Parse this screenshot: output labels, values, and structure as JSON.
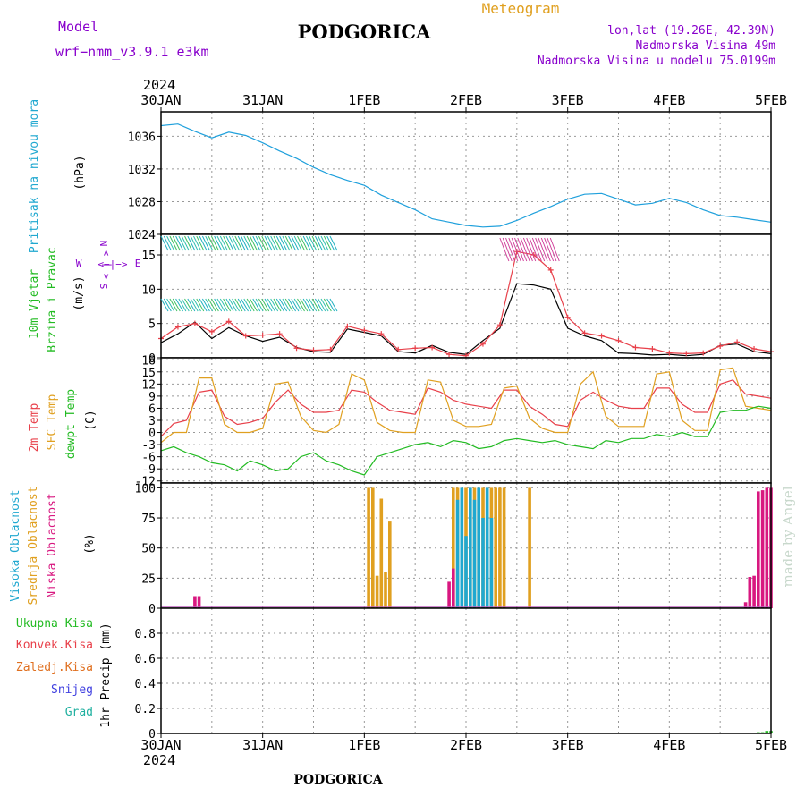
{
  "header": {
    "model_label": "Model",
    "model_name": "wrf−nmm_v3.9.1 e3km",
    "title": "PODGORICA",
    "product": "Meteogram",
    "lonlat": "lon,lat (19.26E, 42.39N)",
    "elevation": "Nadmorska Visina 49m",
    "model_elevation": "Nadmorska Visina u modelu 75.0199m",
    "year_top": "2024",
    "year_bottom": "2024",
    "footer_title": "PODGORICA",
    "watermark": "made by Angel"
  },
  "colors": {
    "pressure": "#1fa0dc",
    "wind_speed": "#000000",
    "wind_gust": "#e8404a",
    "temp_2m": "#e8404a",
    "temp_sfc": "#e0a020",
    "dewpoint": "#22bb22",
    "cloud_high": "#20a8d0",
    "cloud_mid": "#e0a020",
    "cloud_low": "#d81880",
    "precip": "#22bb22",
    "label_purple": "#8800cc",
    "label_cyan": "#20a8d0",
    "label_green": "#22bb22",
    "label_red": "#e8404a",
    "label_orange": "#e07020",
    "label_blue": "#4040e0",
    "label_teal": "#20b0a0",
    "label_orange_title": "#e0a020"
  },
  "chart_data": [
    {
      "id": "pressure",
      "type": "line",
      "ylabel": "Pritisak na nivou mora",
      "unit": "(hPa)",
      "ylim": [
        1024,
        1039
      ],
      "yticks": [
        1024,
        1028,
        1032,
        1036
      ],
      "x_hours": [
        0,
        4,
        8,
        12,
        16,
        20,
        24,
        28,
        32,
        36,
        40,
        44,
        48,
        52,
        56,
        60,
        64,
        68,
        72,
        76,
        80,
        84,
        88,
        92,
        96,
        100,
        104,
        108,
        112,
        116,
        120,
        124,
        128,
        132,
        136,
        140,
        144
      ],
      "values": [
        1037.3,
        1037.5,
        1036.6,
        1035.8,
        1036.5,
        1036.1,
        1035.2,
        1034.2,
        1033.3,
        1032.2,
        1031.3,
        1030.6,
        1030.0,
        1028.8,
        1027.9,
        1027.0,
        1025.9,
        1025.5,
        1025.1,
        1024.9,
        1025.0,
        1025.7,
        1026.6,
        1027.4,
        1028.3,
        1028.9,
        1029.0,
        1028.3,
        1027.6,
        1027.8,
        1028.4,
        1027.9,
        1027.0,
        1026.3,
        1026.1,
        1025.8,
        1025.5
      ],
      "grid": true
    },
    {
      "id": "wind",
      "type": "line",
      "ylabel": "10m Vjetar Brzina i Pravac",
      "unit": "(m/s)",
      "compass": {
        "n": "N",
        "s": "S",
        "w": "W",
        "e": "E",
        "arrows": "<−|−>"
      },
      "ylim": [
        0,
        18
      ],
      "yticks": [
        0,
        5,
        10,
        15
      ],
      "series": [
        {
          "name": "speed",
          "x_hours": [
            0,
            4,
            8,
            12,
            16,
            20,
            24,
            28,
            32,
            36,
            40,
            44,
            48,
            52,
            56,
            60,
            64,
            68,
            72,
            76,
            80,
            84,
            88,
            92,
            96,
            100,
            104,
            108,
            112,
            116,
            120,
            124,
            128,
            132,
            136,
            140,
            144
          ],
          "values": [
            2.2,
            3.5,
            5.2,
            2.8,
            4.4,
            3.2,
            2.4,
            3.0,
            1.5,
            0.9,
            0.8,
            4.2,
            3.7,
            3.2,
            0.9,
            0.7,
            1.8,
            0.8,
            0.5,
            2.5,
            4.3,
            10.8,
            10.6,
            10.0,
            4.3,
            3.2,
            2.5,
            0.7,
            0.6,
            0.4,
            0.5,
            0.3,
            0.5,
            1.8,
            2.0,
            0.9,
            0.6
          ]
        },
        {
          "name": "gust",
          "x_hours": [
            0,
            4,
            8,
            12,
            16,
            20,
            24,
            28,
            32,
            36,
            40,
            44,
            48,
            52,
            56,
            60,
            64,
            68,
            72,
            76,
            80,
            84,
            88,
            92,
            96,
            100,
            104,
            108,
            112,
            116,
            120,
            124,
            128,
            132,
            136,
            140,
            144
          ],
          "values": [
            2.8,
            4.5,
            5.0,
            3.8,
            5.3,
            3.2,
            3.3,
            3.5,
            1.4,
            1.1,
            1.2,
            4.6,
            4.0,
            3.5,
            1.2,
            1.4,
            1.5,
            0.5,
            0.3,
            2.0,
            4.8,
            15.5,
            15.0,
            12.8,
            5.9,
            3.6,
            3.2,
            2.5,
            1.5,
            1.3,
            0.7,
            0.6,
            0.7,
            1.7,
            2.3,
            1.3,
            0.9
          ]
        }
      ],
      "grid": true
    },
    {
      "id": "temperature",
      "type": "line",
      "ylabel": "2m Temp",
      "ylabel2": "SFC Temp",
      "ylabel3": "dewpt Temp",
      "unit": "(C)",
      "ylim": [
        -12.5,
        18.5
      ],
      "yticks": [
        -12,
        -9,
        -6,
        -3,
        0,
        3,
        6,
        9,
        12,
        15,
        18
      ],
      "x_hours": [
        0,
        3,
        6,
        9,
        12,
        15,
        18,
        21,
        24,
        27,
        30,
        33,
        36,
        39,
        42,
        45,
        48,
        51,
        54,
        57,
        60,
        63,
        66,
        69,
        72,
        75,
        78,
        81,
        84,
        87,
        90,
        93,
        96,
        99,
        102,
        105,
        108,
        111,
        114,
        117,
        120,
        123,
        126,
        129,
        132,
        135,
        138,
        141,
        144
      ],
      "series": [
        {
          "name": "2m Temp",
          "values": [
            -1.0,
            2.2,
            3.0,
            10.0,
            10.5,
            4.0,
            2.0,
            2.5,
            3.5,
            7.5,
            10.5,
            7.0,
            5.0,
            5.0,
            5.5,
            10.5,
            10.0,
            7.5,
            5.5,
            5.0,
            4.5,
            11.0,
            10.0,
            8.0,
            7.0,
            6.5,
            6.0,
            10.5,
            10.5,
            6.5,
            4.5,
            2.0,
            1.5,
            8.0,
            10.0,
            8.0,
            6.5,
            6.0,
            6.0,
            11.0,
            11.0,
            7.0,
            5.0,
            5.0,
            12.0,
            13.0,
            9.5,
            9.0,
            8.5
          ]
        },
        {
          "name": "SFC Temp",
          "values": [
            -2.5,
            0.0,
            0.0,
            13.5,
            13.5,
            2.0,
            0.0,
            0.0,
            1.0,
            12.0,
            12.5,
            4.0,
            0.5,
            0.0,
            2.0,
            14.5,
            13.0,
            2.5,
            0.5,
            0.0,
            0.0,
            13.0,
            12.5,
            3.0,
            1.5,
            1.5,
            2.0,
            11.0,
            11.5,
            3.5,
            1.0,
            0.0,
            0.0,
            12.0,
            15.0,
            4.0,
            1.5,
            1.5,
            1.5,
            14.5,
            15.0,
            3.0,
            0.5,
            0.5,
            15.5,
            16.0,
            6.5,
            6.0,
            5.5
          ]
        },
        {
          "name": "dewpt Temp",
          "values": [
            -4.5,
            -3.5,
            -5.0,
            -6.0,
            -7.5,
            -8.0,
            -9.5,
            -7.0,
            -8.0,
            -9.5,
            -9.0,
            -6.0,
            -5.0,
            -7.0,
            -8.0,
            -9.5,
            -10.5,
            -6.0,
            -5.0,
            -4.0,
            -3.0,
            -2.5,
            -3.5,
            -2.0,
            -2.5,
            -4.0,
            -3.5,
            -2.0,
            -1.5,
            -2.0,
            -2.5,
            -2.0,
            -3.0,
            -3.5,
            -4.0,
            -2.0,
            -2.5,
            -1.5,
            -1.5,
            -0.5,
            -1.0,
            0.0,
            -1.0,
            -1.0,
            5.0,
            5.5,
            5.5,
            6.5,
            6.0
          ]
        }
      ],
      "grid": true
    },
    {
      "id": "clouds",
      "type": "bar",
      "ylabel": "Visoka Oblacnost",
      "ylabel2": "Srednja Oblacnost",
      "ylabel3": "Niska Oblacnost",
      "unit": "(%)",
      "ylim": [
        0,
        104
      ],
      "yticks": [
        0,
        25,
        50,
        75,
        100
      ],
      "series": [
        {
          "name": "Srednja Oblacnost",
          "bars": [
            [
              49,
              100
            ],
            [
              50,
              100
            ],
            [
              51,
              27
            ],
            [
              52,
              91
            ],
            [
              53,
              30
            ],
            [
              54,
              72
            ],
            [
              69,
              100
            ],
            [
              70,
              100
            ],
            [
              71,
              100
            ],
            [
              72,
              100
            ],
            [
              73,
              100
            ],
            [
              74,
              100
            ],
            [
              75,
              100
            ],
            [
              76,
              100
            ],
            [
              77,
              100
            ],
            [
              78,
              100
            ],
            [
              79,
              100
            ],
            [
              80,
              100
            ],
            [
              81,
              100
            ],
            [
              87,
              100
            ]
          ]
        },
        {
          "name": "Visoka Oblacnost",
          "bars": [
            [
              70,
              90
            ],
            [
              71,
              100
            ],
            [
              72,
              60
            ],
            [
              73,
              100
            ],
            [
              74,
              90
            ],
            [
              75,
              100
            ],
            [
              76,
              75
            ],
            [
              77,
              100
            ],
            [
              78,
              75
            ]
          ]
        },
        {
          "name": "Niska Oblacnost",
          "bars": [
            [
              8,
              10
            ],
            [
              9,
              10
            ],
            [
              68,
              22
            ],
            [
              69,
              33
            ],
            [
              138,
              5
            ],
            [
              139,
              26
            ],
            [
              140,
              27
            ],
            [
              141,
              97
            ],
            [
              142,
              98
            ],
            [
              143,
              100
            ],
            [
              144,
              100
            ]
          ]
        }
      ],
      "grid": true
    },
    {
      "id": "precip",
      "type": "bar",
      "ylabel": "1hr Precip",
      "unit": "(mm)",
      "ylim": [
        0,
        1.0
      ],
      "yticks": [
        0,
        0.2,
        0.4,
        0.6,
        0.8
      ],
      "legend": [
        "Ukupna Kisa",
        "Konvek.Kisa",
        "Zaledj.Kisa",
        "Snijeg",
        "Grad"
      ],
      "series": [
        {
          "name": "Ukupna Kisa",
          "bars": [
            [
              141,
              0.01
            ],
            [
              142,
              0.01
            ],
            [
              143,
              0.02
            ],
            [
              144,
              0.02
            ]
          ]
        }
      ],
      "grid": true
    }
  ],
  "x_axis": {
    "hours_per_day": 24,
    "total_hours": 144,
    "day_labels": [
      "30JAN",
      "31JAN",
      "1FEB",
      "2FEB",
      "3FEB",
      "4FEB",
      "5FEB"
    ]
  }
}
